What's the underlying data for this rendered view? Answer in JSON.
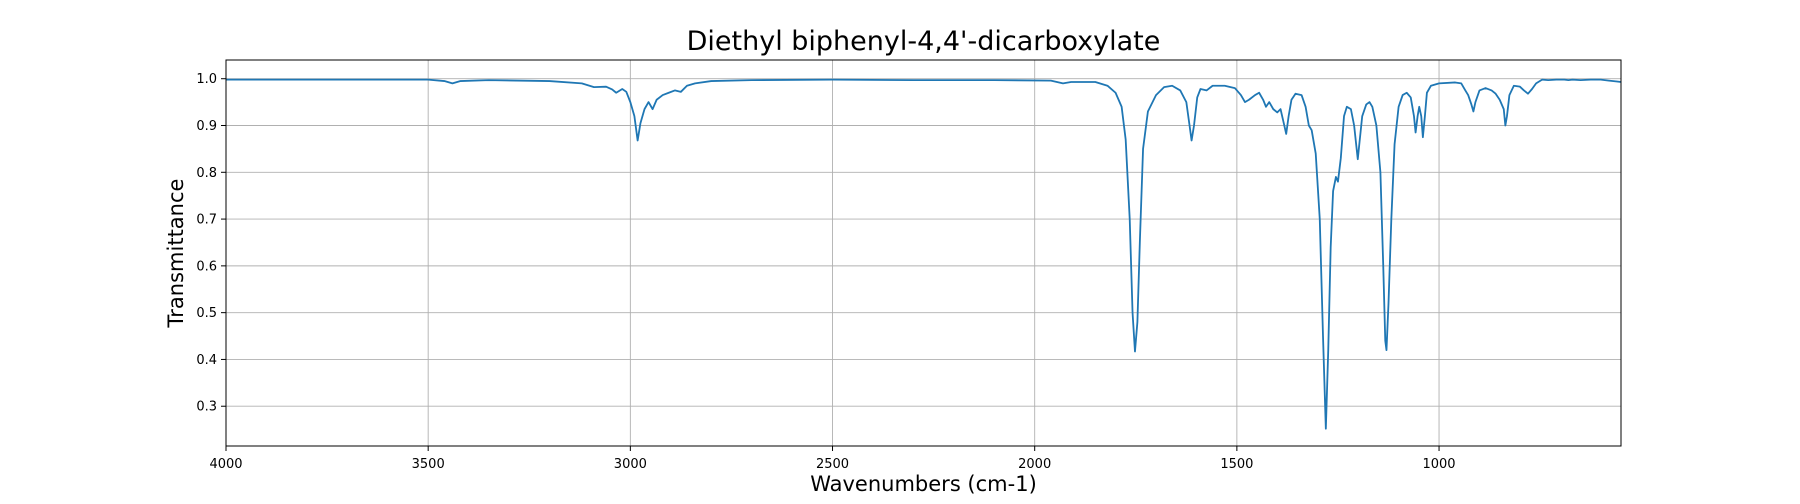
{
  "chart_data": {
    "type": "line",
    "title": "Diethyl biphenyl-4,4'-dicarboxylate",
    "xlabel": "Wavenumbers (cm-1)",
    "ylabel": "Transmittance",
    "xlim": [
      4000,
      550
    ],
    "ylim": [
      0.215,
      1.04
    ],
    "x_reversed": true,
    "grid": true,
    "x_ticks": [
      4000,
      3500,
      3000,
      2500,
      2000,
      1500,
      1000
    ],
    "x_tick_labels": [
      "4000",
      "3500",
      "3000",
      "2500",
      "2000",
      "1500",
      "1000"
    ],
    "y_ticks": [
      0.3,
      0.4,
      0.5,
      0.6,
      0.7,
      0.8,
      0.9,
      1.0
    ],
    "y_tick_labels": [
      "0.3",
      "0.4",
      "0.5",
      "0.6",
      "0.7",
      "0.8",
      "0.9",
      "1.0"
    ],
    "line_color": "#1f77b4",
    "series": [
      {
        "points": [
          [
            4000,
            0.998
          ],
          [
            3800,
            0.998
          ],
          [
            3600,
            0.998
          ],
          [
            3500,
            0.998
          ],
          [
            3460,
            0.995
          ],
          [
            3440,
            0.99
          ],
          [
            3420,
            0.995
          ],
          [
            3350,
            0.997
          ],
          [
            3200,
            0.995
          ],
          [
            3120,
            0.99
          ],
          [
            3090,
            0.982
          ],
          [
            3060,
            0.983
          ],
          [
            3045,
            0.977
          ],
          [
            3035,
            0.97
          ],
          [
            3020,
            0.978
          ],
          [
            3010,
            0.972
          ],
          [
            3000,
            0.95
          ],
          [
            2990,
            0.92
          ],
          [
            2982,
            0.868
          ],
          [
            2975,
            0.905
          ],
          [
            2965,
            0.935
          ],
          [
            2955,
            0.95
          ],
          [
            2945,
            0.935
          ],
          [
            2935,
            0.955
          ],
          [
            2920,
            0.965
          ],
          [
            2905,
            0.97
          ],
          [
            2890,
            0.975
          ],
          [
            2875,
            0.972
          ],
          [
            2860,
            0.985
          ],
          [
            2840,
            0.99
          ],
          [
            2800,
            0.995
          ],
          [
            2700,
            0.997
          ],
          [
            2500,
            0.998
          ],
          [
            2300,
            0.997
          ],
          [
            2100,
            0.997
          ],
          [
            1960,
            0.996
          ],
          [
            1930,
            0.99
          ],
          [
            1910,
            0.993
          ],
          [
            1850,
            0.993
          ],
          [
            1820,
            0.985
          ],
          [
            1800,
            0.97
          ],
          [
            1785,
            0.94
          ],
          [
            1775,
            0.87
          ],
          [
            1765,
            0.7
          ],
          [
            1758,
            0.5
          ],
          [
            1752,
            0.417
          ],
          [
            1746,
            0.48
          ],
          [
            1740,
            0.65
          ],
          [
            1732,
            0.85
          ],
          [
            1720,
            0.93
          ],
          [
            1700,
            0.965
          ],
          [
            1680,
            0.982
          ],
          [
            1660,
            0.985
          ],
          [
            1640,
            0.975
          ],
          [
            1625,
            0.95
          ],
          [
            1617,
            0.9
          ],
          [
            1612,
            0.868
          ],
          [
            1606,
            0.9
          ],
          [
            1598,
            0.96
          ],
          [
            1590,
            0.978
          ],
          [
            1575,
            0.975
          ],
          [
            1560,
            0.985
          ],
          [
            1530,
            0.985
          ],
          [
            1505,
            0.98
          ],
          [
            1490,
            0.965
          ],
          [
            1480,
            0.95
          ],
          [
            1470,
            0.955
          ],
          [
            1455,
            0.965
          ],
          [
            1445,
            0.97
          ],
          [
            1435,
            0.955
          ],
          [
            1428,
            0.94
          ],
          [
            1420,
            0.95
          ],
          [
            1410,
            0.935
          ],
          [
            1400,
            0.928
          ],
          [
            1392,
            0.935
          ],
          [
            1384,
            0.905
          ],
          [
            1378,
            0.882
          ],
          [
            1372,
            0.92
          ],
          [
            1365,
            0.955
          ],
          [
            1355,
            0.968
          ],
          [
            1340,
            0.965
          ],
          [
            1330,
            0.94
          ],
          [
            1322,
            0.9
          ],
          [
            1315,
            0.89
          ],
          [
            1305,
            0.84
          ],
          [
            1295,
            0.7
          ],
          [
            1287,
            0.45
          ],
          [
            1280,
            0.252
          ],
          [
            1274,
            0.42
          ],
          [
            1268,
            0.64
          ],
          [
            1262,
            0.76
          ],
          [
            1255,
            0.79
          ],
          [
            1250,
            0.78
          ],
          [
            1243,
            0.83
          ],
          [
            1235,
            0.92
          ],
          [
            1228,
            0.94
          ],
          [
            1218,
            0.935
          ],
          [
            1210,
            0.9
          ],
          [
            1205,
            0.86
          ],
          [
            1201,
            0.828
          ],
          [
            1196,
            0.87
          ],
          [
            1190,
            0.92
          ],
          [
            1180,
            0.945
          ],
          [
            1172,
            0.95
          ],
          [
            1165,
            0.94
          ],
          [
            1155,
            0.9
          ],
          [
            1145,
            0.8
          ],
          [
            1138,
            0.6
          ],
          [
            1133,
            0.44
          ],
          [
            1130,
            0.42
          ],
          [
            1125,
            0.52
          ],
          [
            1118,
            0.7
          ],
          [
            1110,
            0.86
          ],
          [
            1100,
            0.94
          ],
          [
            1090,
            0.965
          ],
          [
            1080,
            0.97
          ],
          [
            1070,
            0.96
          ],
          [
            1062,
            0.92
          ],
          [
            1058,
            0.885
          ],
          [
            1053,
            0.92
          ],
          [
            1049,
            0.94
          ],
          [
            1044,
            0.92
          ],
          [
            1040,
            0.875
          ],
          [
            1035,
            0.92
          ],
          [
            1030,
            0.97
          ],
          [
            1020,
            0.985
          ],
          [
            1000,
            0.99
          ],
          [
            960,
            0.992
          ],
          [
            945,
            0.99
          ],
          [
            935,
            0.975
          ],
          [
            928,
            0.965
          ],
          [
            920,
            0.945
          ],
          [
            915,
            0.93
          ],
          [
            910,
            0.95
          ],
          [
            900,
            0.975
          ],
          [
            885,
            0.98
          ],
          [
            870,
            0.975
          ],
          [
            860,
            0.968
          ],
          [
            850,
            0.955
          ],
          [
            840,
            0.935
          ],
          [
            836,
            0.9
          ],
          [
            832,
            0.92
          ],
          [
            826,
            0.965
          ],
          [
            815,
            0.985
          ],
          [
            800,
            0.983
          ],
          [
            790,
            0.975
          ],
          [
            780,
            0.968
          ],
          [
            770,
            0.978
          ],
          [
            760,
            0.99
          ],
          [
            745,
            0.998
          ],
          [
            730,
            0.997
          ],
          [
            710,
            0.998
          ],
          [
            690,
            0.998
          ],
          [
            680,
            0.997
          ],
          [
            670,
            0.998
          ],
          [
            650,
            0.997
          ],
          [
            625,
            0.998
          ],
          [
            600,
            0.998
          ],
          [
            580,
            0.996
          ],
          [
            560,
            0.994
          ],
          [
            550,
            0.993
          ]
        ]
      }
    ]
  }
}
